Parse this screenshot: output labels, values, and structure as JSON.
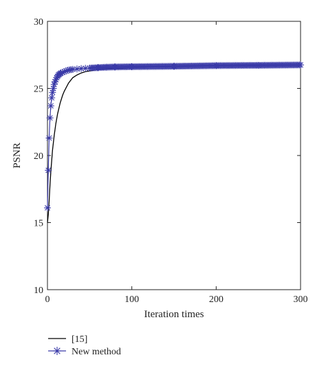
{
  "chart_data": {
    "type": "line",
    "xlabel": "Iteration times",
    "ylabel": "PSNR",
    "xlim": [
      0,
      300
    ],
    "ylim": [
      10,
      30
    ],
    "xticks": [
      0,
      100,
      200,
      300
    ],
    "yticks": [
      10,
      15,
      20,
      25,
      30
    ],
    "grid": false,
    "legend_position": "bottom-left, outside plot",
    "series": [
      {
        "name": "[15]",
        "color": "#000000",
        "marker": "none",
        "x": [
          0,
          1,
          2,
          3,
          4,
          6,
          8,
          10,
          12,
          15,
          18,
          20,
          25,
          30,
          35,
          40,
          45,
          50,
          55,
          60,
          70,
          80,
          100,
          150,
          200,
          250,
          300
        ],
        "y": [
          15.0,
          15.6,
          16.6,
          17.8,
          18.8,
          20.4,
          21.5,
          22.4,
          23.1,
          23.9,
          24.5,
          24.8,
          25.4,
          25.8,
          26.0,
          26.15,
          26.25,
          26.3,
          26.35,
          26.4,
          26.45,
          26.5,
          26.55,
          26.6,
          26.65,
          26.7,
          26.7
        ]
      },
      {
        "name": "New method",
        "color": "#3a3aa8",
        "marker": "asterisk",
        "x": [
          0,
          1,
          2,
          3,
          4,
          5,
          6,
          7,
          8,
          9,
          10,
          11,
          12,
          13,
          14,
          15,
          16,
          18,
          20,
          22,
          24,
          26,
          28,
          30,
          35,
          40,
          45,
          50,
          60,
          70,
          80,
          100,
          150,
          200,
          250,
          300
        ],
        "y": [
          16.1,
          18.9,
          21.3,
          22.8,
          23.7,
          24.3,
          24.7,
          25.0,
          25.3,
          25.5,
          25.65,
          25.8,
          25.9,
          26.0,
          26.05,
          26.1,
          26.15,
          26.2,
          26.25,
          26.3,
          26.35,
          26.38,
          26.4,
          26.42,
          26.45,
          26.48,
          26.5,
          26.52,
          26.55,
          26.58,
          26.6,
          26.62,
          26.65,
          26.7,
          26.72,
          26.75
        ]
      }
    ]
  }
}
